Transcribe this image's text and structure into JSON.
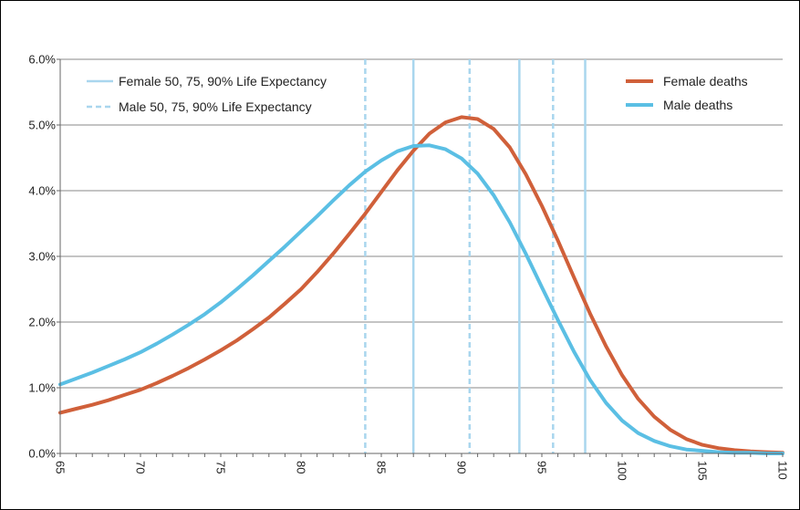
{
  "chart_data": {
    "type": "line",
    "title": "",
    "xlabel": "",
    "ylabel": "",
    "xlim": [
      65,
      110
    ],
    "ylim": [
      0,
      6.0
    ],
    "x_ticks": [
      65,
      70,
      75,
      80,
      85,
      90,
      95,
      100,
      105,
      110
    ],
    "x_tick_labels": [
      "65",
      "70",
      "75",
      "80",
      "85",
      "90",
      "95",
      "100",
      "105",
      "110"
    ],
    "y_ticks": [
      0,
      1,
      2,
      3,
      4,
      5,
      6
    ],
    "y_tick_labels": [
      "0.0%",
      "1.0%",
      "2.0%",
      "3.0%",
      "4.0%",
      "5.0%",
      "6.0%"
    ],
    "grid": "horizontal",
    "x": [
      65,
      66,
      67,
      68,
      69,
      70,
      71,
      72,
      73,
      74,
      75,
      76,
      77,
      78,
      79,
      80,
      81,
      82,
      83,
      84,
      85,
      86,
      87,
      88,
      89,
      90,
      91,
      92,
      93,
      94,
      95,
      96,
      97,
      98,
      99,
      100,
      101,
      102,
      103,
      104,
      105,
      106,
      107,
      108,
      109,
      110
    ],
    "series": [
      {
        "name": "Female deaths",
        "color": "#D0603A",
        "values": [
          0.62,
          0.68,
          0.74,
          0.81,
          0.89,
          0.97,
          1.07,
          1.18,
          1.3,
          1.43,
          1.57,
          1.72,
          1.89,
          2.07,
          2.28,
          2.5,
          2.76,
          3.04,
          3.34,
          3.65,
          3.98,
          4.31,
          4.61,
          4.87,
          5.04,
          5.12,
          5.09,
          4.94,
          4.66,
          4.25,
          3.77,
          3.24,
          2.68,
          2.13,
          1.63,
          1.19,
          0.83,
          0.56,
          0.36,
          0.22,
          0.13,
          0.08,
          0.05,
          0.03,
          0.02,
          0.01
        ]
      },
      {
        "name": "Male deaths",
        "color": "#5BBFE4",
        "values": [
          1.05,
          1.14,
          1.23,
          1.33,
          1.43,
          1.54,
          1.67,
          1.81,
          1.96,
          2.12,
          2.3,
          2.5,
          2.71,
          2.93,
          3.15,
          3.38,
          3.61,
          3.85,
          4.08,
          4.29,
          4.46,
          4.6,
          4.68,
          4.69,
          4.63,
          4.49,
          4.26,
          3.93,
          3.52,
          3.04,
          2.53,
          2.03,
          1.55,
          1.12,
          0.77,
          0.5,
          0.31,
          0.19,
          0.11,
          0.06,
          0.04,
          0.02,
          0.01,
          0.01,
          0.0,
          0.0
        ]
      }
    ],
    "reference_lines": [
      {
        "group": "female",
        "style": "solid",
        "x": 87.0
      },
      {
        "group": "female",
        "style": "solid",
        "x": 93.6
      },
      {
        "group": "female",
        "style": "solid",
        "x": 97.7
      },
      {
        "group": "male",
        "style": "dashed",
        "x": 84.0
      },
      {
        "group": "male",
        "style": "dashed",
        "x": 90.5
      },
      {
        "group": "male",
        "style": "dashed",
        "x": 95.7
      }
    ],
    "reference_color": "#A9D6EE",
    "legend_left": {
      "placement": "top-left",
      "entries": [
        {
          "label": "Female 50, 75, 90% Life Expectancy",
          "style": "solid"
        },
        {
          "label": "Male 50, 75, 90% Life Expectancy",
          "style": "dashed"
        }
      ]
    },
    "legend_right": {
      "placement": "top-right",
      "entries": [
        {
          "label": "Female deaths",
          "color": "#D0603A"
        },
        {
          "label": "Male deaths",
          "color": "#5BBFE4"
        }
      ]
    }
  }
}
